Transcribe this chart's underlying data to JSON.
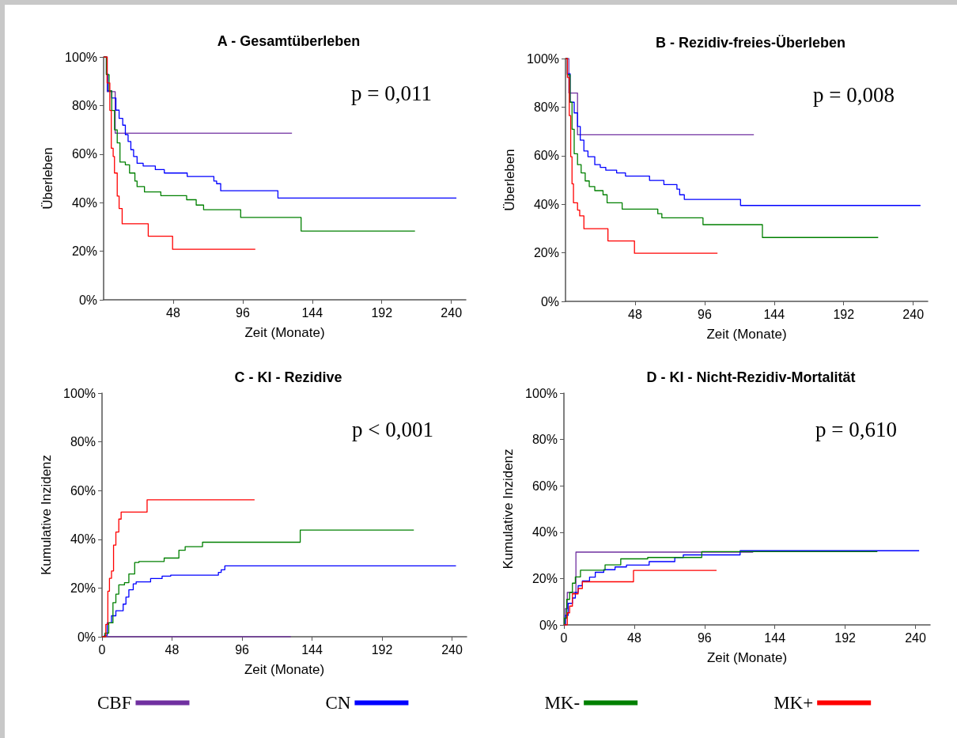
{
  "chart_data": [
    {
      "type": "step",
      "title": "A - Gesamtüberleben",
      "xlabel": "Zeit (Monate)",
      "ylabel": "Überleben",
      "annotations": [
        "p = 0,011"
      ],
      "xlim": [
        0,
        250
      ],
      "xticks": [
        48,
        96,
        144,
        192,
        240
      ],
      "ylim": [
        0,
        100
      ],
      "yticks": [
        {
          "value": 0,
          "label": "0%"
        },
        {
          "value": 20,
          "label": "20%"
        },
        {
          "value": 40,
          "label": "40%"
        },
        {
          "value": 60,
          "label": "60%"
        },
        {
          "value": 80,
          "label": "80%"
        },
        {
          "value": 100,
          "label": "100%"
        }
      ],
      "marker": "none",
      "line_style": "solid",
      "legend": false,
      "series": [
        {
          "color": "#7030a0",
          "x": [
            0,
            2.5,
            8,
            130
          ],
          "values": [
            100,
            85.7,
            68.6,
            68.6
          ]
        },
        {
          "color": "#0000ff",
          "x": [
            0,
            1.9,
            2.8,
            5.6,
            8.5,
            10.7,
            13.2,
            15,
            16.9,
            18.8,
            20.7,
            23.1,
            27.3,
            35.7,
            41.9,
            57.7,
            76.1,
            78,
            80.8,
            120.3,
            243.5
          ],
          "values": [
            100,
            93,
            86,
            83.1,
            78.1,
            74.7,
            71.9,
            68,
            65.2,
            61.8,
            59,
            56.2,
            55.1,
            53.6,
            52.2,
            50.8,
            48.9,
            47.8,
            44.9,
            41.9,
            41.9
          ]
        },
        {
          "color": "#008000",
          "x": [
            0,
            1.9,
            3.8,
            5.6,
            7.5,
            9.4,
            11.3,
            15,
            17.9,
            21.6,
            23.1,
            28.2,
            39.5,
            57.3,
            63.9,
            69,
            94.6,
            136.3,
            214.9
          ],
          "values": [
            100,
            92.7,
            86,
            78,
            70,
            64.6,
            56.7,
            55.6,
            52.2,
            48.9,
            46.6,
            44.4,
            42.9,
            41.2,
            39,
            37.1,
            33.9,
            28.3,
            28.3
          ]
        },
        {
          "color": "#ff0000",
          "x": [
            0,
            2.4,
            4.3,
            5.3,
            6.6,
            7.5,
            9.4,
            10.7,
            12.8,
            30.8,
            47.6,
            104.7
          ],
          "values": [
            100,
            89.3,
            78,
            62.4,
            59,
            52.2,
            42.7,
            37.6,
            31.3,
            26.2,
            20.8,
            20.8
          ]
        }
      ]
    },
    {
      "type": "step",
      "title": "B - Rezidiv-freies-Überleben",
      "xlabel": "Zeit (Monate)",
      "ylabel": "Überleben",
      "annotations": [
        "p = 0,008"
      ],
      "xlim": [
        0,
        250
      ],
      "xticks": [
        48,
        96,
        144,
        192,
        240
      ],
      "ylim": [
        0,
        100
      ],
      "yticks": [
        {
          "value": 0,
          "label": "0%"
        },
        {
          "value": 20,
          "label": "20%"
        },
        {
          "value": 40,
          "label": "40%"
        },
        {
          "value": 60,
          "label": "60%"
        },
        {
          "value": 80,
          "label": "80%"
        },
        {
          "value": 100,
          "label": "100%"
        }
      ],
      "marker": "none",
      "line_style": "solid",
      "legend": false,
      "series": [
        {
          "color": "#7030a0",
          "x": [
            0,
            2.3,
            8.3,
            130
          ],
          "values": [
            100,
            85.8,
            68.6,
            68.6
          ]
        },
        {
          "color": "#0000ff",
          "x": [
            0,
            1.3,
            3.2,
            6,
            8.3,
            10.2,
            12.7,
            15.5,
            20.2,
            24,
            27.8,
            35.3,
            41.4,
            58,
            67.9,
            76.9,
            78.8,
            82,
            120.8,
            245
          ],
          "values": [
            100,
            93.8,
            82,
            77.6,
            72,
            66.4,
            61.9,
            59.6,
            56.3,
            55.2,
            54,
            52.9,
            51.6,
            49.8,
            48.1,
            46.2,
            43.9,
            42,
            39.5,
            39.5
          ]
        },
        {
          "color": "#008000",
          "x": [
            0,
            1.3,
            3.2,
            4.5,
            6,
            8.3,
            10.8,
            13.6,
            16.4,
            20.2,
            25.9,
            28.7,
            39.1,
            63.7,
            66.5,
            94.9,
            135.9,
            215.8
          ],
          "values": [
            100,
            93.3,
            82,
            70.9,
            60.8,
            56.3,
            52.9,
            49.6,
            47.3,
            45.6,
            43.9,
            40.6,
            38,
            36.1,
            34.4,
            31.6,
            26.3,
            26.3
          ]
        },
        {
          "color": "#ff0000",
          "x": [
            0,
            1.3,
            2.6,
            3.6,
            4.5,
            5.5,
            8.3,
            9.8,
            12.7,
            29.3,
            47.6,
            104.9
          ],
          "values": [
            100,
            92.2,
            76.5,
            59.6,
            48.4,
            40.6,
            37.6,
            35.2,
            29.9,
            24.9,
            19.8,
            19.8
          ]
        }
      ]
    },
    {
      "type": "step",
      "title": "C - KI - Rezidive",
      "xlabel": "Zeit (Monate)",
      "ylabel": "Kumulative Inzidenz",
      "annotations": [
        "p < 0,001"
      ],
      "xlim": [
        0,
        250
      ],
      "xticks": [
        0,
        48,
        96,
        144,
        192,
        240
      ],
      "ylim": [
        0,
        100
      ],
      "yticks": [
        {
          "value": 0,
          "label": "0%"
        },
        {
          "value": 20,
          "label": "20%"
        },
        {
          "value": 40,
          "label": "40%"
        },
        {
          "value": 60,
          "label": "60%"
        },
        {
          "value": 80,
          "label": "80%"
        },
        {
          "value": 100,
          "label": "100%"
        }
      ],
      "marker": "none",
      "line_style": "solid",
      "legend": "bottom",
      "series": [
        {
          "name": "CBF",
          "color": "#7030a0",
          "x": [
            0,
            129.5
          ],
          "values": [
            0,
            0
          ]
        },
        {
          "name": "CN",
          "color": "#0000ff",
          "x": [
            0,
            1.6,
            3.6,
            6.5,
            9.5,
            14.5,
            16.4,
            18.4,
            21.4,
            23.4,
            33.3,
            41.2,
            47.1,
            79.8,
            81.7,
            84.2,
            242.7
          ],
          "values": [
            0,
            0.6,
            5.7,
            8.6,
            10.7,
            13.4,
            16.3,
            19.3,
            21.7,
            22.5,
            23.9,
            24.9,
            25.3,
            26.4,
            27.5,
            29.1,
            29.1
          ]
        },
        {
          "name": "MK-",
          "color": "#008000",
          "x": [
            0,
            2,
            4.6,
            7.5,
            9.5,
            11.5,
            15.4,
            18.4,
            22.4,
            25.3,
            42.6,
            52.7,
            57,
            68.9,
            135.9,
            213.8
          ],
          "values": [
            0,
            1.5,
            5.7,
            14,
            17.5,
            21.3,
            22.2,
            25.8,
            30.5,
            30.9,
            32.3,
            35.5,
            37,
            38.8,
            43.8,
            43.8
          ]
        },
        {
          "name": "MK+",
          "color": "#ff0000",
          "x": [
            0,
            2.6,
            4,
            5.1,
            6.5,
            7.9,
            9.5,
            11.5,
            13.1,
            30.9,
            104.6
          ],
          "values": [
            0,
            5.1,
            18.7,
            24,
            27,
            37.6,
            43,
            48.3,
            51.2,
            56.2,
            56.2
          ]
        }
      ]
    },
    {
      "type": "step",
      "title": "D - KI - Nicht-Rezidiv-Mortalität",
      "xlabel": "Zeit (Monate)",
      "ylabel": "Kumulative Inzidenz",
      "annotations": [
        "p = 0,610"
      ],
      "xlim": [
        0,
        250
      ],
      "xticks": [
        0,
        48,
        96,
        144,
        192,
        240
      ],
      "ylim": [
        0,
        100
      ],
      "yticks": [
        {
          "value": 0,
          "label": "0%"
        },
        {
          "value": 20,
          "label": "20%"
        },
        {
          "value": 40,
          "label": "40%"
        },
        {
          "value": 60,
          "label": "60%"
        },
        {
          "value": 80,
          "label": "80%"
        },
        {
          "value": 100,
          "label": "100%"
        }
      ],
      "marker": "none",
      "line_style": "solid",
      "legend": false,
      "series": [
        {
          "color": "#7030a0",
          "x": [
            0,
            1,
            2.3,
            8.2,
            129.2
          ],
          "values": [
            0,
            7,
            14,
            31.4,
            31.4
          ]
        },
        {
          "color": "#0000ff",
          "x": [
            0,
            1,
            2.9,
            5.8,
            7.8,
            9.7,
            12.6,
            17.5,
            21.4,
            27.2,
            34.9,
            42.7,
            58.2,
            75.7,
            81.5,
            120.3,
            242.5
          ],
          "values": [
            0,
            4.1,
            9.3,
            11.6,
            14,
            16.9,
            19,
            20.6,
            22.7,
            23.8,
            25,
            25.8,
            27.3,
            29.1,
            30.2,
            32,
            32
          ]
        },
        {
          "color": "#008000",
          "x": [
            0,
            0.4,
            1.9,
            3.9,
            5.8,
            7.8,
            11.3,
            28.1,
            38.8,
            57.2,
            94.1,
            214
          ],
          "values": [
            0,
            2.9,
            11,
            14,
            18,
            20.7,
            23.6,
            25.9,
            28.5,
            29.1,
            31.6,
            31.6
          ]
        },
        {
          "color": "#ff0000",
          "x": [
            0,
            1.9,
            2.3,
            3.9,
            5.8,
            9.7,
            12.6,
            47.5,
            104.2
          ],
          "values": [
            0,
            0,
            5.2,
            8.1,
            13.4,
            15.7,
            18.6,
            23.5,
            23.5
          ]
        }
      ]
    }
  ]
}
